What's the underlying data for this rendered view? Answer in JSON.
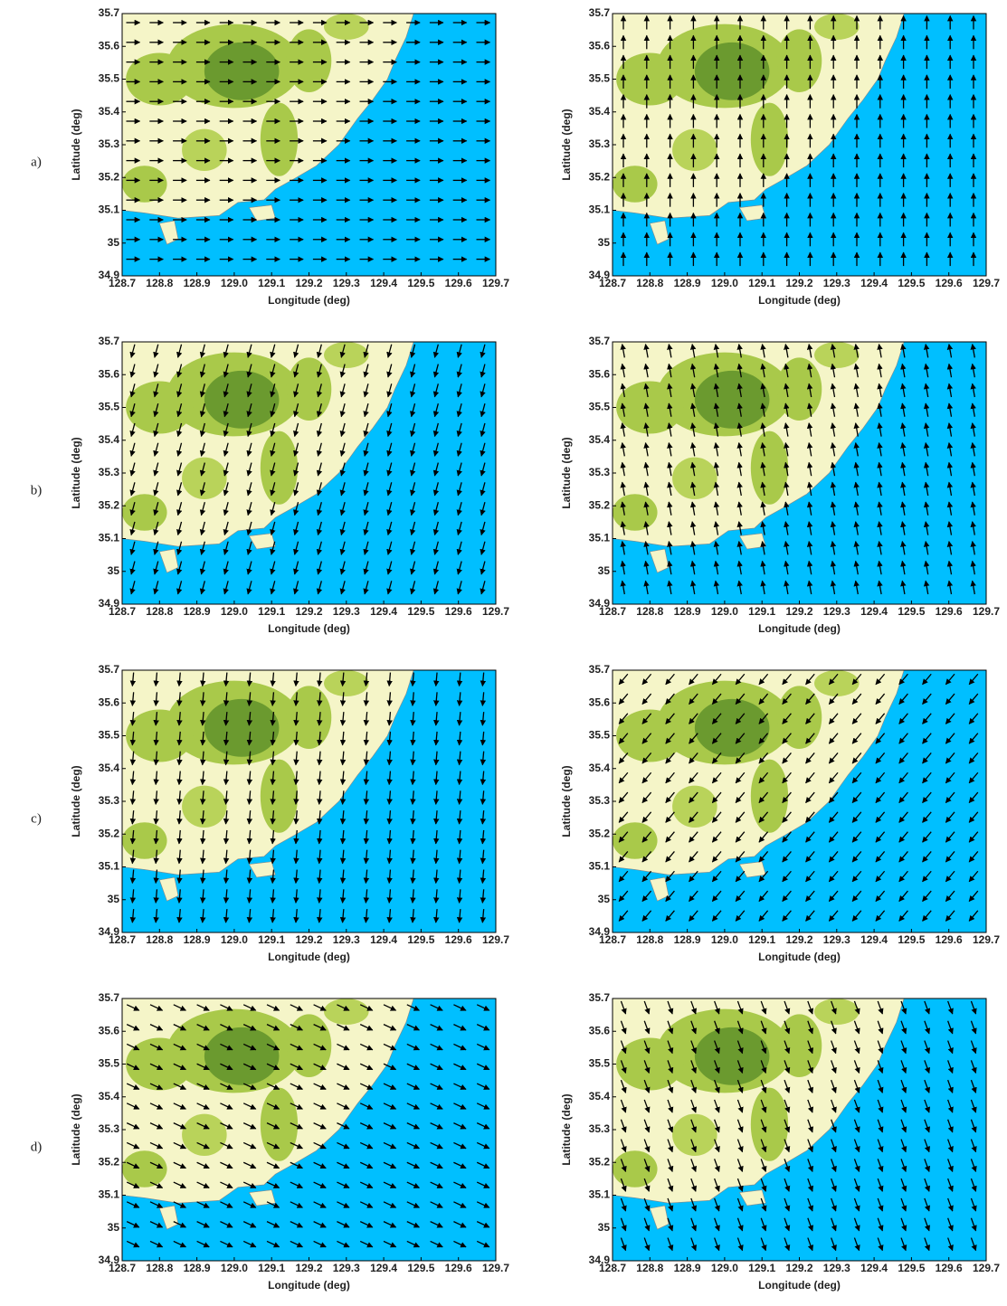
{
  "rows": [
    {
      "label": "a)"
    },
    {
      "label": "b)"
    },
    {
      "label": "c)"
    },
    {
      "label": "d)"
    }
  ],
  "axes": {
    "xlabel": "Longitude (deg)",
    "ylabel": "Latitude (deg)",
    "xlim": [
      128.7,
      129.7
    ],
    "ylim": [
      34.9,
      35.7
    ],
    "xticks": [
      128.7,
      128.8,
      128.9,
      {
        "value": 129,
        "label": "129.0"
      },
      129.1,
      129.2,
      129.3,
      129.4,
      129.5,
      129.6,
      129.7
    ],
    "yticks": [
      34.9,
      35,
      35.1,
      35.2,
      35.3,
      35.4,
      35.5,
      35.6,
      35.7
    ]
  }
}
